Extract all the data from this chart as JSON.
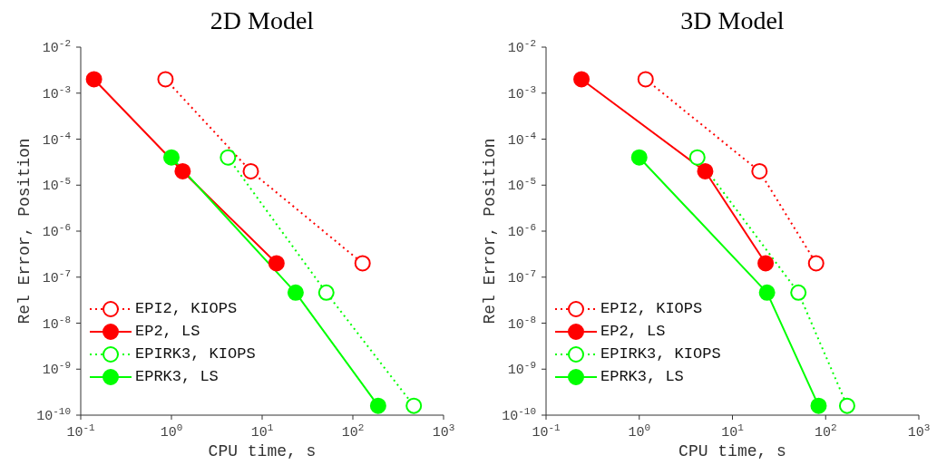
{
  "chart_data": [
    {
      "type": "line",
      "title": "2D Model",
      "xlabel": "CPU time, s",
      "ylabel": "Rel Error, Position",
      "log": "xy",
      "legend": "bottom left",
      "xlim": [
        0.1,
        1000
      ],
      "xticks": [
        {
          "value": 0.1,
          "label": "10$^{-1}$"
        },
        {
          "value": 1,
          "label": "10$^{0}$"
        },
        {
          "value": 10,
          "label": "10$^{1}$"
        },
        {
          "value": 100,
          "label": "10$^{2}$"
        },
        {
          "value": 1000,
          "label": "10$^{3}$"
        }
      ],
      "ylim": [
        1e-10,
        0.01
      ],
      "yticks": [
        {
          "value": 1e-10,
          "label": "10$^{-10}$"
        },
        {
          "value": 1e-09,
          "label": "10$^{-9}$"
        },
        {
          "value": 1e-08,
          "label": "10$^{-8}$"
        },
        {
          "value": 1e-07,
          "label": "10$^{-7}$"
        },
        {
          "value": 1e-06,
          "label": "10$^{-6}$"
        },
        {
          "value": 1e-05,
          "label": "10$^{-5}$"
        },
        {
          "value": 0.0001,
          "label": "10$^{-4}$"
        },
        {
          "value": 0.001,
          "label": "10$^{-3}$"
        },
        {
          "value": 0.01,
          "label": "10$^{-2}$"
        }
      ],
      "series": [
        {
          "name": "EPI2, KIOPS",
          "color": "#ff0000",
          "line_style": "dotted",
          "marker": "circle",
          "x": [
            0.86,
            7.5,
            128
          ],
          "values": [
            0.002,
            2e-05,
            2e-07
          ]
        },
        {
          "name": "EP2, LS",
          "color": "#ff0000",
          "line_style": "solid",
          "marker": "circle",
          "x": [
            0.14,
            1.33,
            14.4
          ],
          "values": [
            0.002,
            2e-05,
            2e-07
          ]
        },
        {
          "name": "EPIRK3, KIOPS",
          "color": "#00ff00",
          "line_style": "dotted",
          "marker": "circle",
          "x": [
            4.2,
            51,
            470
          ],
          "values": [
            4e-05,
            4.6e-08,
            1.6e-10
          ]
        },
        {
          "name": "EPRK3, LS",
          "color": "#00ff00",
          "line_style": "solid",
          "marker": "circle",
          "x": [
            1.0,
            23.4,
            190
          ],
          "values": [
            4e-05,
            4.6e-08,
            1.6e-10
          ]
        }
      ]
    },
    {
      "type": "line",
      "title": "3D Model",
      "xlabel": "CPU time, s",
      "ylabel": "Rel Error, Position",
      "log": "xy",
      "legend": "bottom left",
      "xlim": [
        0.1,
        1000
      ],
      "xticks": [
        {
          "value": 0.1,
          "label": "10$^{-1}$"
        },
        {
          "value": 1,
          "label": "10$^{0}$"
        },
        {
          "value": 10,
          "label": "10$^{1}$"
        },
        {
          "value": 100,
          "label": "10$^{2}$"
        },
        {
          "value": 1000,
          "label": "10$^{3}$"
        }
      ],
      "ylim": [
        1e-10,
        0.01
      ],
      "yticks": [
        {
          "value": 1e-10,
          "label": "10$^{-10}$"
        },
        {
          "value": 1e-09,
          "label": "10$^{-9}$"
        },
        {
          "value": 1e-08,
          "label": "10$^{-8}$"
        },
        {
          "value": 1e-07,
          "label": "10$^{-7}$"
        },
        {
          "value": 1e-06,
          "label": "10$^{-6}$"
        },
        {
          "value": 1e-05,
          "label": "10$^{-5}$"
        },
        {
          "value": 0.0001,
          "label": "10$^{-4}$"
        },
        {
          "value": 0.001,
          "label": "10$^{-3}$"
        },
        {
          "value": 0.01,
          "label": "10$^{-2}$"
        }
      ],
      "series": [
        {
          "name": "EPI2, KIOPS",
          "color": "#ff0000",
          "line_style": "dotted",
          "marker": "circle",
          "x": [
            1.17,
            19.5,
            79
          ],
          "values": [
            0.002,
            2e-05,
            2e-07
          ]
        },
        {
          "name": "EP2, LS",
          "color": "#ff0000",
          "line_style": "solid",
          "marker": "circle",
          "x": [
            0.24,
            5.1,
            22.7
          ],
          "values": [
            0.002,
            2e-05,
            2e-07
          ]
        },
        {
          "name": "EPIRK3, KIOPS",
          "color": "#00ff00",
          "line_style": "dotted",
          "marker": "circle",
          "x": [
            4.2,
            51,
            170
          ],
          "values": [
            4e-05,
            4.6e-08,
            1.6e-10
          ]
        },
        {
          "name": "EPRK3, LS",
          "color": "#00ff00",
          "line_style": "solid",
          "marker": "circle",
          "x": [
            1.0,
            23.5,
            84
          ],
          "values": [
            4e-05,
            4.6e-08,
            1.6e-10
          ]
        }
      ]
    }
  ]
}
